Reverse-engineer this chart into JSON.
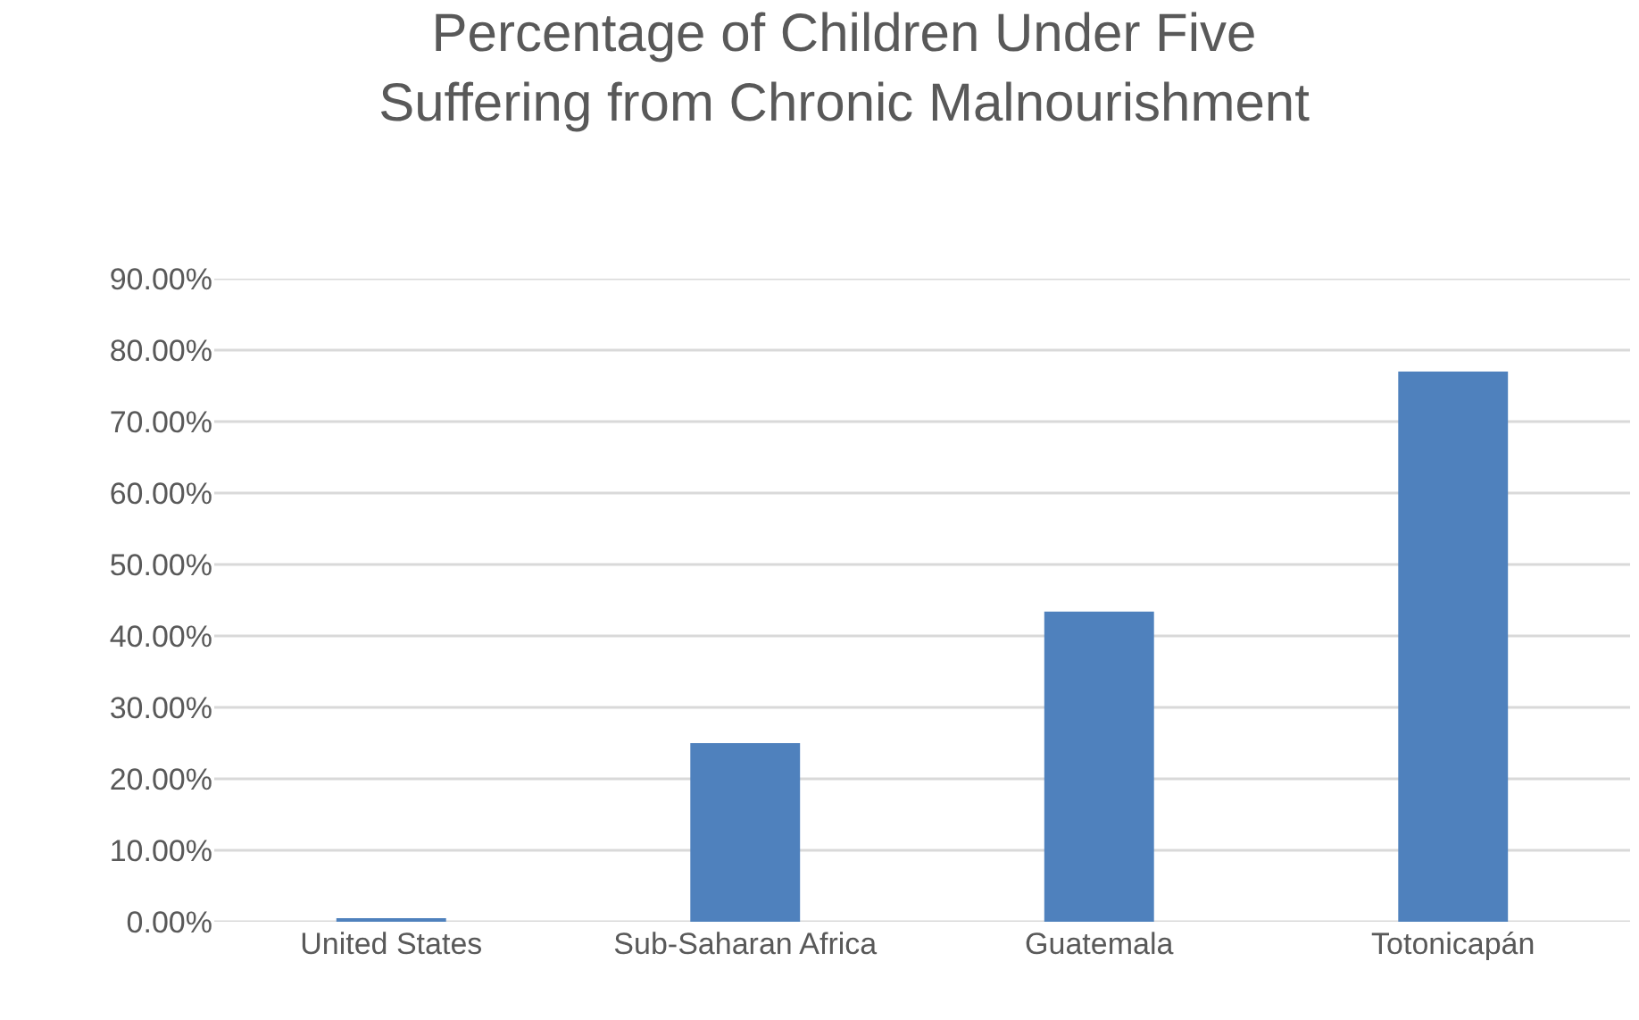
{
  "chart_data": {
    "type": "bar",
    "title": "Percentage of Children Under Five\nSuffering from Chronic Malnourishment",
    "categories": [
      "United States",
      "Sub-Saharan Africa",
      "Guatemala",
      "Totonicapán"
    ],
    "values": [
      0.4,
      25,
      43.4,
      77
    ],
    "color": "#4f81bd",
    "ylim": [
      0,
      90
    ],
    "yticks": [
      {
        "value": 0,
        "label": "0.00%"
      },
      {
        "value": 10,
        "label": "10.00%"
      },
      {
        "value": 20,
        "label": "20.00%"
      },
      {
        "value": 30,
        "label": "30.00%"
      },
      {
        "value": 40,
        "label": "40.00%"
      },
      {
        "value": 50,
        "label": "50.00%"
      },
      {
        "value": 60,
        "label": "60.00%"
      },
      {
        "value": 70,
        "label": "70.00%"
      },
      {
        "value": 80,
        "label": "80.00%"
      },
      {
        "value": 90,
        "label": "90.00%"
      }
    ],
    "grid": "y"
  }
}
